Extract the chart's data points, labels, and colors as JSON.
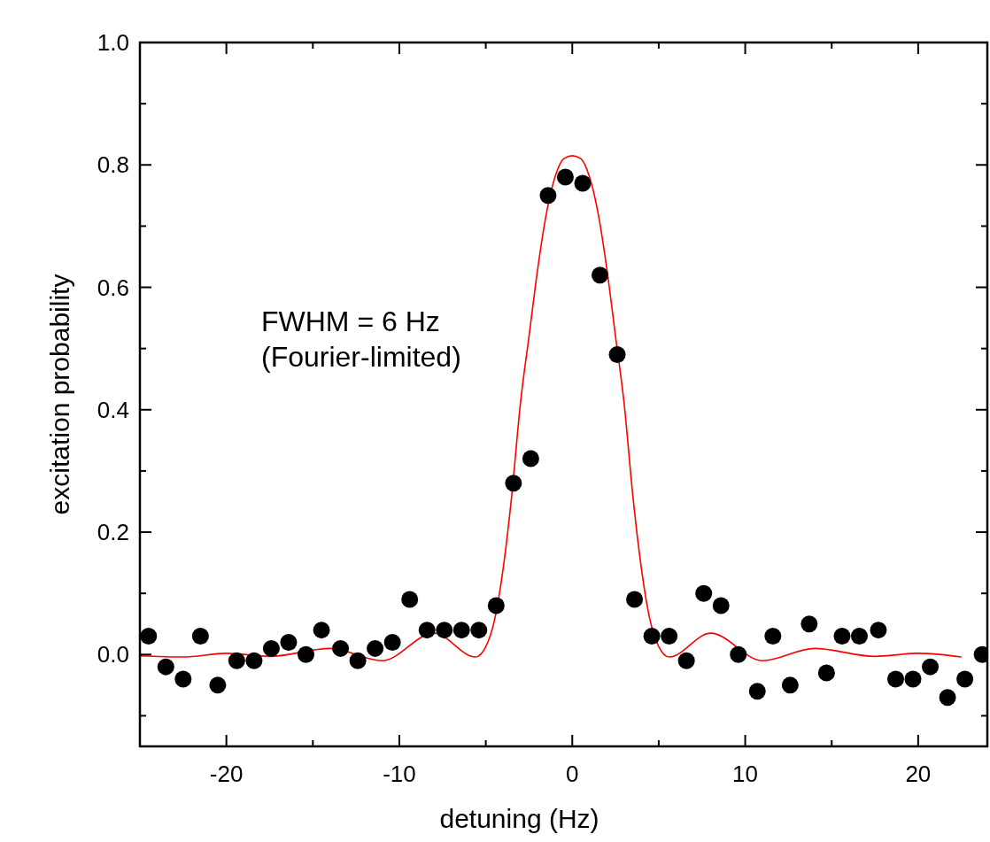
{
  "chart_data": {
    "type": "scatter",
    "xlabel": "detuning (Hz)",
    "ylabel": "excitation probability",
    "annotations": [
      "FWHM = 6 Hz\n(Fourier-limited)"
    ],
    "xlim": [
      -25,
      24
    ],
    "ylim": [
      -0.15,
      1.0
    ],
    "xticks": [
      {
        "value": -25,
        "label": null
      },
      -20,
      {
        "value": -15,
        "label": null
      },
      -10,
      {
        "value": -5,
        "label": null
      },
      0,
      {
        "value": 5,
        "label": null
      },
      10,
      {
        "value": 15,
        "label": null
      },
      20
    ],
    "yticks": [
      {
        "value": -0.1,
        "label": null
      },
      {
        "value": 0,
        "label": "0.0"
      },
      {
        "value": 0.1,
        "label": null
      },
      0.2,
      {
        "value": 0.3,
        "label": null
      },
      0.4,
      {
        "value": 0.5,
        "label": null
      },
      0.6,
      {
        "value": 0.7,
        "label": null
      },
      0.8,
      {
        "value": 0.9,
        "label": null
      },
      {
        "value": 1,
        "label": "1.0"
      }
    ],
    "grid": false,
    "series": [
      {
        "color": "#000000",
        "marker": "circle",
        "x": [
          -24.5,
          -23.5,
          -22.5,
          -21.5,
          -20.5,
          -19.4,
          -18.4,
          -17.4,
          -16.4,
          -15.4,
          -14.5,
          -13.4,
          -12.4,
          -11.4,
          -10.4,
          -9.4,
          -8.4,
          -7.4,
          -6.4,
          -5.4,
          -4.4,
          -3.4,
          -2.4,
          -1.4,
          -0.4,
          0.6,
          1.6,
          2.6,
          3.6,
          4.6,
          5.6,
          6.6,
          7.6,
          8.6,
          9.6,
          10.7,
          11.6,
          12.6,
          13.7,
          14.7,
          15.6,
          16.6,
          17.7,
          18.7,
          19.7,
          20.7,
          21.7,
          22.7,
          23.7
        ],
        "values": [
          0.03,
          -0.02,
          -0.04,
          0.03,
          -0.05,
          -0.01,
          -0.01,
          0.01,
          0.02,
          0.0,
          0.04,
          0.01,
          -0.01,
          0.01,
          0.02,
          0.09,
          0.04,
          0.04,
          0.04,
          0.04,
          0.08,
          0.28,
          0.32,
          0.75,
          0.78,
          0.77,
          0.62,
          0.49,
          0.09,
          0.03,
          0.03,
          -0.01,
          0.1,
          0.08,
          0.0,
          -0.06,
          0.03,
          -0.05,
          0.05,
          -0.03,
          0.03,
          0.03,
          0.04,
          -0.04,
          -0.04,
          -0.02,
          -0.07,
          -0.04,
          0.0
        ]
      },
      {
        "type": "line",
        "color": "#ff0000",
        "line_style": "solid",
        "x": [
          -25,
          -22.5,
          -20,
          -17.5,
          -14,
          -11,
          -8,
          -5.6,
          -5,
          -4.5,
          -4,
          -3.5,
          -3,
          -2.5,
          -2,
          -1.5,
          -1,
          -0.5,
          0,
          0.5,
          1,
          1.5,
          2,
          2.5,
          3,
          3.5,
          4,
          4.5,
          5,
          5.6,
          8,
          11,
          14,
          17.5,
          20,
          22.5
        ],
        "values": [
          -0.002,
          -0.004,
          0.002,
          -0.003,
          0.01,
          -0.01,
          0.035,
          -0.004,
          0.013,
          0.056,
          0.14,
          0.26,
          0.41,
          0.52,
          0.63,
          0.72,
          0.78,
          0.81,
          0.815,
          0.81,
          0.78,
          0.72,
          0.63,
          0.52,
          0.41,
          0.26,
          0.14,
          0.056,
          0.013,
          -0.004,
          0.035,
          -0.01,
          0.01,
          -0.003,
          0.002,
          -0.004
        ]
      }
    ]
  }
}
